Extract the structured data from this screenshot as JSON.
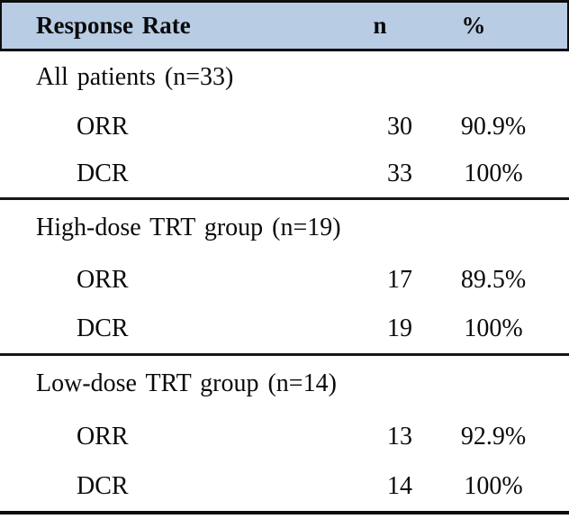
{
  "header": {
    "label": "Response Rate",
    "n": "n",
    "pct": "%"
  },
  "sections": [
    {
      "title": "All patients (n=33)",
      "rows": [
        {
          "label": "ORR",
          "n": "30",
          "pct": "90.9%"
        },
        {
          "label": "DCR",
          "n": "33",
          "pct": "100%"
        }
      ]
    },
    {
      "title": "High-dose TRT group (n=19)",
      "rows": [
        {
          "label": "ORR",
          "n": "17",
          "pct": "89.5%"
        },
        {
          "label": "DCR",
          "n": "19",
          "pct": "100%"
        }
      ]
    },
    {
      "title": "Low-dose TRT group (n=14)",
      "rows": [
        {
          "label": "ORR",
          "n": "13",
          "pct": "92.9%"
        },
        {
          "label": "DCR",
          "n": "14",
          "pct": "100%"
        }
      ]
    }
  ],
  "colors": {
    "header_bg": "#b8cce4",
    "border": "#000000"
  }
}
